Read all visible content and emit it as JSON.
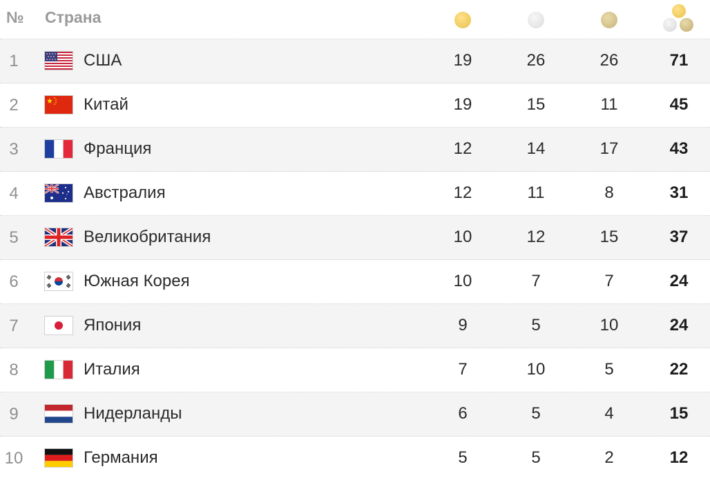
{
  "header": {
    "num_label": "№",
    "country_label": "Страна",
    "icons": [
      "gold-medal-icon",
      "silver-medal-icon",
      "bronze-medal-icon",
      "total-medals-icon"
    ]
  },
  "rows": [
    {
      "rank": "1",
      "country": "США",
      "flag": "usa-flag-icon",
      "gold": "19",
      "silver": "26",
      "bronze": "26",
      "total": "71"
    },
    {
      "rank": "2",
      "country": "Китай",
      "flag": "china-flag-icon",
      "gold": "19",
      "silver": "15",
      "bronze": "11",
      "total": "45"
    },
    {
      "rank": "3",
      "country": "Франция",
      "flag": "france-flag-icon",
      "gold": "12",
      "silver": "14",
      "bronze": "17",
      "total": "43"
    },
    {
      "rank": "4",
      "country": "Австралия",
      "flag": "australia-flag-icon",
      "gold": "12",
      "silver": "11",
      "bronze": "8",
      "total": "31"
    },
    {
      "rank": "5",
      "country": "Великобритания",
      "flag": "uk-flag-icon",
      "gold": "10",
      "silver": "12",
      "bronze": "15",
      "total": "37"
    },
    {
      "rank": "6",
      "country": "Южная Корея",
      "flag": "south-korea-flag-icon",
      "gold": "10",
      "silver": "7",
      "bronze": "7",
      "total": "24"
    },
    {
      "rank": "7",
      "country": "Япония",
      "flag": "japan-flag-icon",
      "gold": "9",
      "silver": "5",
      "bronze": "10",
      "total": "24"
    },
    {
      "rank": "8",
      "country": "Италия",
      "flag": "italy-flag-icon",
      "gold": "7",
      "silver": "10",
      "bronze": "5",
      "total": "22"
    },
    {
      "rank": "9",
      "country": "Нидерланды",
      "flag": "netherlands-flag-icon",
      "gold": "6",
      "silver": "5",
      "bronze": "4",
      "total": "15"
    },
    {
      "rank": "10",
      "country": "Германия",
      "flag": "germany-flag-icon",
      "gold": "5",
      "silver": "5",
      "bronze": "2",
      "total": "12"
    }
  ],
  "colors": {
    "row_shade": "#f4f4f4",
    "gold": "#e8c04a",
    "silver": "#dcdcdc",
    "bronze": "#c9b37a"
  }
}
